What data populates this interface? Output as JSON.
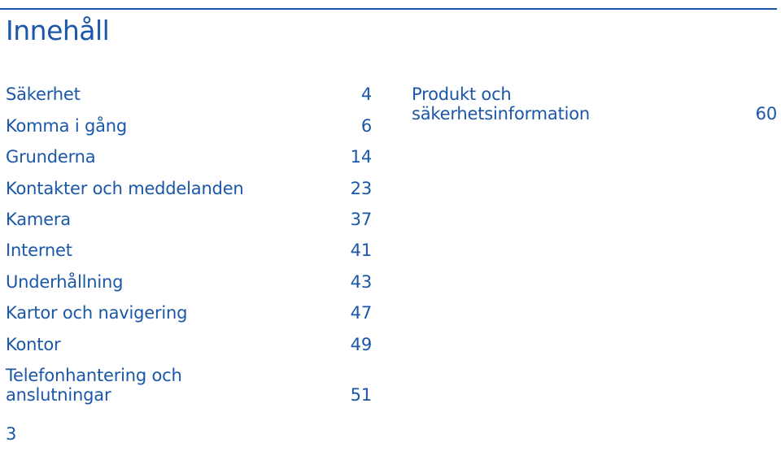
{
  "title": "Innehåll",
  "left_column": [
    {
      "label": "Säkerhet",
      "page": "4"
    },
    {
      "label": "Komma i gång",
      "page": "6"
    },
    {
      "label": "Grunderna",
      "page": "14"
    },
    {
      "label": "Kontakter och meddelanden",
      "page": "23"
    },
    {
      "label": "Kamera",
      "page": "37"
    },
    {
      "label": "Internet",
      "page": "41"
    },
    {
      "label": "Underhållning",
      "page": "43"
    },
    {
      "label": "Kartor och navigering",
      "page": "47"
    },
    {
      "label": "Kontor",
      "page": "49"
    },
    {
      "label": "Telefonhantering och\nanslutningar",
      "page": "51"
    }
  ],
  "right_column": [
    {
      "label": "Produkt och\nsäkerhetsinformation",
      "page": "60"
    }
  ],
  "page_number": "3",
  "colors": {
    "accent": "#1a57a8"
  }
}
